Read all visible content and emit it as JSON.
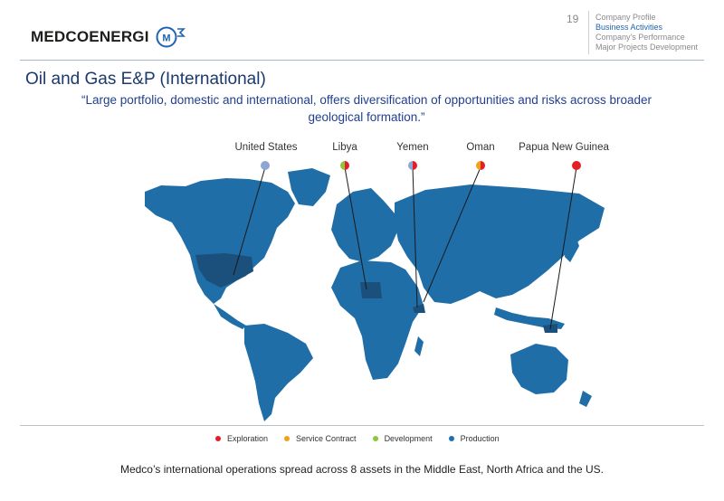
{
  "header": {
    "logo_text": "MedcoEnergi",
    "page_number": "19",
    "nav": [
      "Company Profile",
      "Business Activities",
      "Company's Performance",
      "Major Projects Development"
    ],
    "nav_active_index": 1
  },
  "title": "Oil and Gas E&P (International)",
  "quote": "“Large portfolio, domestic and international, offers diversification of opportunities and risks across broader geological formation.”",
  "locations": [
    {
      "name": "United States",
      "activities": [
        "production"
      ]
    },
    {
      "name": "Libya",
      "activities": [
        "exploration",
        "development"
      ]
    },
    {
      "name": "Yemen",
      "activities": [
        "exploration",
        "production"
      ]
    },
    {
      "name": "Oman",
      "activities": [
        "exploration",
        "service-contract"
      ]
    },
    {
      "name": "Papua New Guinea",
      "activities": [
        "exploration"
      ]
    }
  ],
  "legend": [
    {
      "label": "Exploration",
      "color": "#e31e24"
    },
    {
      "label": "Service Contract",
      "color": "#f0a11c"
    },
    {
      "label": "Development",
      "color": "#8cc63f"
    },
    {
      "label": "Production",
      "color": "#1f6fb5"
    }
  ],
  "colors": {
    "land": "#1f6ea8",
    "highlight": "#1b4f7c",
    "production_dot": "#8fa6d3",
    "exploration": "#e31e24"
  },
  "footer": "Medco’s international operations spread across 8 assets in the Middle East, North Africa and the US."
}
